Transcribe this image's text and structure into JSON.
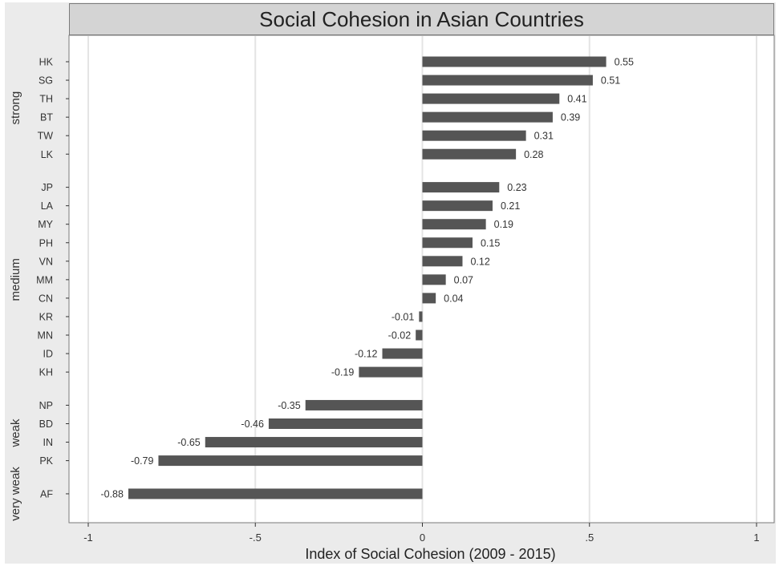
{
  "chart_data": {
    "type": "bar",
    "orientation": "horizontal",
    "title": "Social Cohesion in Asian Countries",
    "xlabel": "Index of Social Cohesion (2009 - 2015)",
    "xlim": [
      -1,
      1
    ],
    "xticks": [
      -1,
      -0.5,
      0,
      0.5,
      1
    ],
    "xtick_labels": [
      "-1",
      "-.5",
      "0",
      ".5",
      "1"
    ],
    "grid": true,
    "bar_color": "#555555",
    "groups": [
      {
        "name": "strong",
        "bars": [
          {
            "label": "HK",
            "value": 0.55,
            "value_label": "0.55"
          },
          {
            "label": "SG",
            "value": 0.51,
            "value_label": "0.51"
          },
          {
            "label": "TH",
            "value": 0.41,
            "value_label": "0.41"
          },
          {
            "label": "BT",
            "value": 0.39,
            "value_label": "0.39"
          },
          {
            "label": "TW",
            "value": 0.31,
            "value_label": "0.31"
          },
          {
            "label": "LK",
            "value": 0.28,
            "value_label": "0.28"
          }
        ]
      },
      {
        "name": "medium",
        "bars": [
          {
            "label": "JP",
            "value": 0.23,
            "value_label": "0.23"
          },
          {
            "label": "LA",
            "value": 0.21,
            "value_label": "0.21"
          },
          {
            "label": "MY",
            "value": 0.19,
            "value_label": "0.19"
          },
          {
            "label": "PH",
            "value": 0.15,
            "value_label": "0.15"
          },
          {
            "label": "VN",
            "value": 0.12,
            "value_label": "0.12"
          },
          {
            "label": "MM",
            "value": 0.07,
            "value_label": "0.07"
          },
          {
            "label": "CN",
            "value": 0.04,
            "value_label": "0.04"
          },
          {
            "label": "KR",
            "value": -0.01,
            "value_label": "-0.01"
          },
          {
            "label": "MN",
            "value": -0.02,
            "value_label": "-0.02"
          },
          {
            "label": "ID",
            "value": -0.12,
            "value_label": "-0.12"
          },
          {
            "label": "KH",
            "value": -0.19,
            "value_label": "-0.19"
          }
        ]
      },
      {
        "name": "weak",
        "bars": [
          {
            "label": "NP",
            "value": -0.35,
            "value_label": "-0.35"
          },
          {
            "label": "BD",
            "value": -0.46,
            "value_label": "-0.46"
          },
          {
            "label": "IN",
            "value": -0.65,
            "value_label": "-0.65"
          },
          {
            "label": "PK",
            "value": -0.79,
            "value_label": "-0.79"
          }
        ]
      },
      {
        "name": "very weak",
        "bars": [
          {
            "label": "AF",
            "value": -0.88,
            "value_label": "-0.88"
          }
        ]
      }
    ]
  }
}
